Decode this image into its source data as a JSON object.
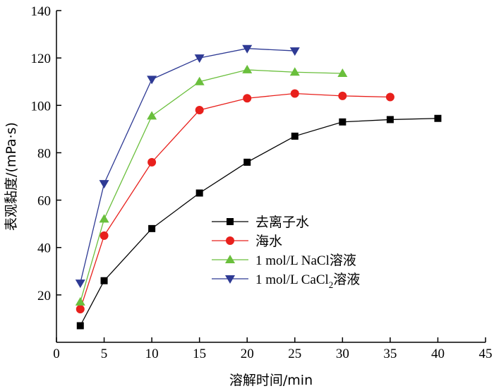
{
  "chart_data": {
    "type": "line",
    "title": "",
    "xlabel": "溶解时间/min",
    "ylabel": "表观黏度/(mPa·s)",
    "xlim": [
      0,
      45
    ],
    "ylim": [
      0,
      140
    ],
    "xticks": [
      0,
      5,
      10,
      15,
      20,
      25,
      30,
      35,
      40,
      45
    ],
    "yticks": [
      20,
      40,
      60,
      80,
      100,
      120,
      140
    ],
    "grid": false,
    "legend": "center-right",
    "series": [
      {
        "name": "去离子水",
        "label_parts": [
          "去离子水",
          "",
          ""
        ],
        "color": "#000000",
        "marker": "square",
        "x": [
          2.5,
          5,
          10,
          15,
          20,
          25,
          30,
          35,
          40
        ],
        "y": [
          7,
          26,
          48,
          63,
          76,
          87,
          93,
          94,
          94.5
        ]
      },
      {
        "name": "海水",
        "label_parts": [
          "海水",
          "",
          ""
        ],
        "color": "#e8201c",
        "marker": "circle",
        "x": [
          2.5,
          5,
          10,
          15,
          20,
          25,
          30,
          35
        ],
        "y": [
          14,
          45,
          76,
          98,
          103,
          105,
          104,
          103.5
        ]
      },
      {
        "name": "1 mol/L NaCl溶液",
        "label_parts": [
          "1 mol/L NaCl溶液",
          "",
          ""
        ],
        "color": "#6abf3c",
        "marker": "triangle-up",
        "x": [
          2.5,
          5,
          10,
          15,
          20,
          25,
          30
        ],
        "y": [
          17,
          52,
          95.5,
          110,
          115,
          114,
          113.5
        ]
      },
      {
        "name": "1 mol/L CaCl2溶液",
        "label_parts": [
          "1 mol/L CaCl",
          "2",
          "溶液"
        ],
        "color": "#2e3a94",
        "marker": "triangle-down",
        "x": [
          2.5,
          5,
          10,
          15,
          20,
          25
        ],
        "y": [
          25,
          67,
          111,
          120,
          124,
          123
        ]
      }
    ]
  }
}
